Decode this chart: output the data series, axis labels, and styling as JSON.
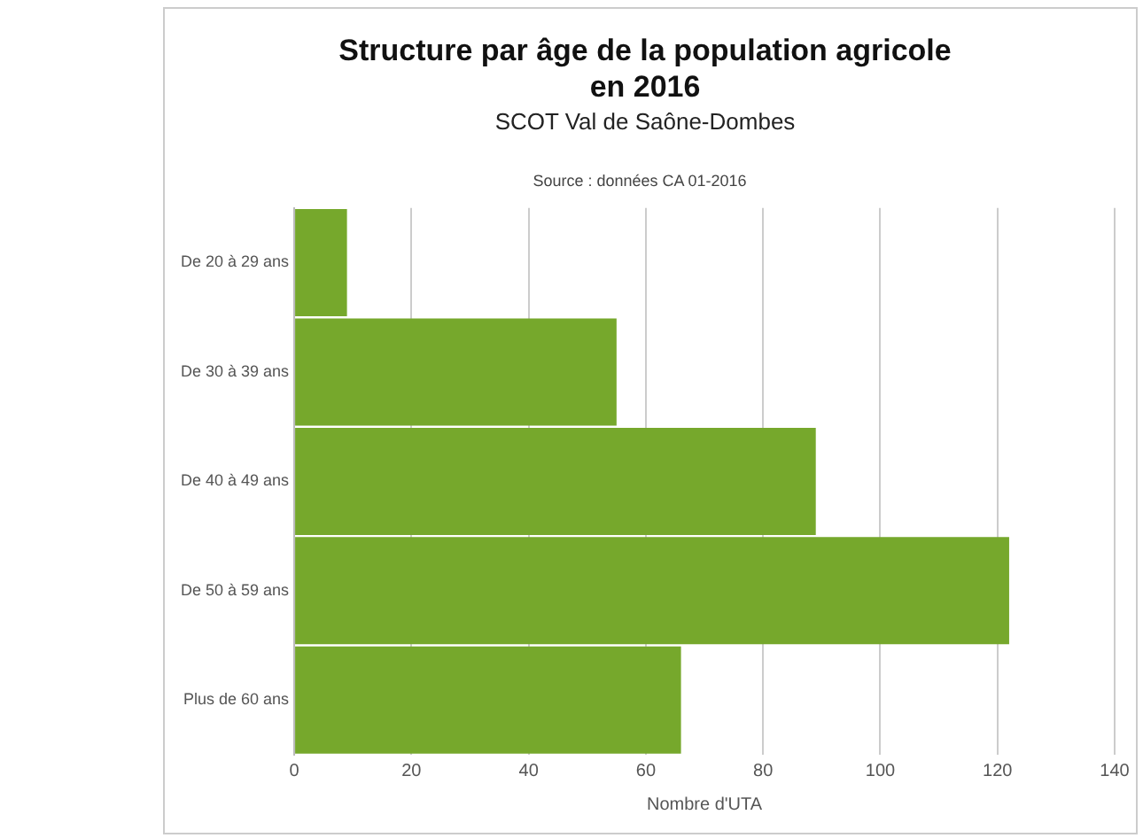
{
  "chart_data": {
    "type": "bar",
    "orientation": "horizontal",
    "title": [
      "Structure par âge de la population agricole",
      "en 2016"
    ],
    "subtitle": "SCOT Val de Saône-Dombes",
    "annotations": [
      "Source : données CA 01-2016"
    ],
    "xlabel": "Nombre d'UTA",
    "categories": [
      "De 20 à 29 ans",
      "De 30 à 39 ans",
      "De 40 à 49 ans",
      "De 50 à 59 ans",
      "Plus de 60 ans"
    ],
    "values": [
      9,
      55,
      89,
      122,
      66
    ],
    "color": "#76a82c",
    "xlim": [
      0,
      140
    ],
    "xticks": [
      0,
      20,
      40,
      60,
      80,
      100,
      120,
      140
    ],
    "grid": "x",
    "legend": false
  }
}
